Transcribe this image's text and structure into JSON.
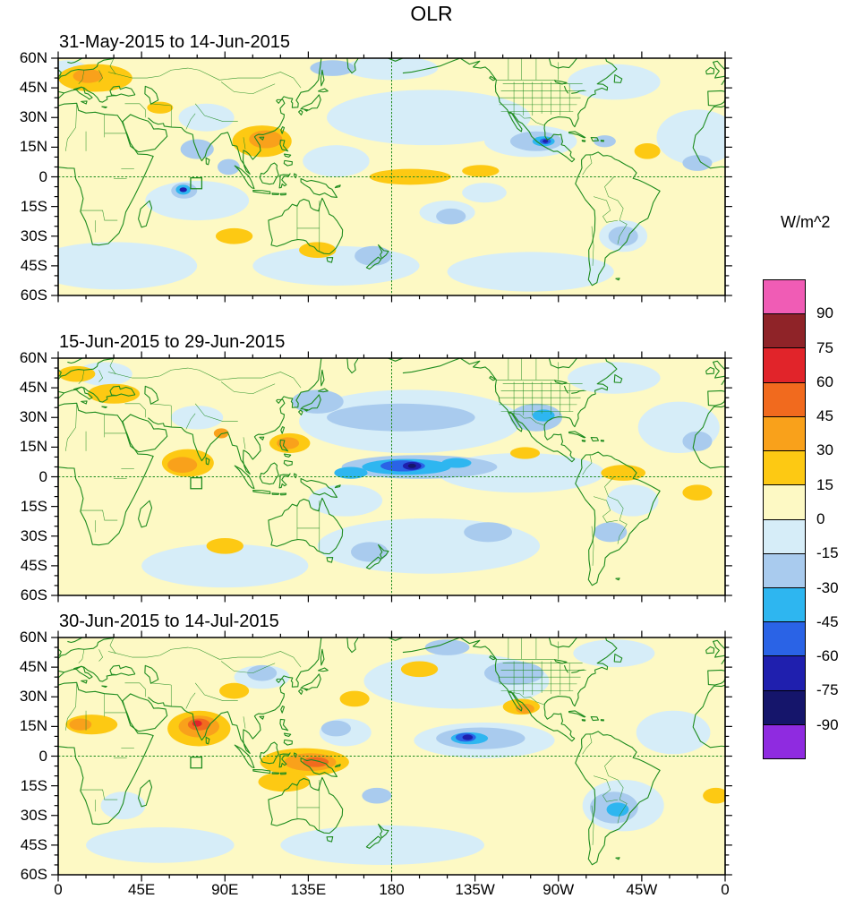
{
  "title": "OLR",
  "colorbar": {
    "label": "W/m^2",
    "tick_labels": [
      "90",
      "75",
      "60",
      "45",
      "30",
      "15",
      "0",
      "-15",
      "-30",
      "-45",
      "-60",
      "-75",
      "-90"
    ]
  },
  "axes": {
    "x_tick_labels": [
      "0",
      "45E",
      "90E",
      "135E",
      "180",
      "135W",
      "90W",
      "45W",
      "0"
    ],
    "x_tick_lons": [
      0,
      45,
      90,
      135,
      180,
      225,
      270,
      315,
      360
    ],
    "y_tick_labels": [
      "60N",
      "45N",
      "30N",
      "15N",
      "0",
      "15S",
      "30S",
      "45S",
      "60S"
    ],
    "y_tick_lats": [
      60,
      45,
      30,
      15,
      0,
      -15,
      -30,
      -45,
      -60
    ]
  },
  "chart_data": {
    "type": "heatmap",
    "variable": "OLR anomaly",
    "units": "W/m^2",
    "projection": "cylindrical, lon 0E eastward to 360, lat 60S to 60N",
    "contour_levels": [
      -90,
      -75,
      -60,
      -45,
      -30,
      -15,
      0,
      15,
      30,
      45,
      60,
      75,
      90
    ],
    "palette": [
      "#8f2be0",
      "#15156b",
      "#1f1fae",
      "#2a63e6",
      "#2eb6f0",
      "#a9cbee",
      "#d6edf8",
      "#fdf9c4",
      "#fdc913",
      "#f9a11b",
      "#f16a1e",
      "#e1242a",
      "#8f2328",
      "#f05cb5"
    ],
    "coast_color": "#1e8c1e",
    "equator_dashed": true,
    "dateline_dashed": true,
    "region_box": {
      "lon_min": 71.5,
      "lon_max": 77.5,
      "lat_min": -6,
      "lat_max": -0.5
    },
    "anomaly_format": "[lon_center, lat_center, lon_radius_deg, lat_radius_deg, palette_index] drawn in listed order",
    "panels": [
      {
        "title": "31-May-2015 to 14-Jun-2015",
        "anomalies": [
          [
            75,
            -12,
            28,
            10,
            6
          ],
          [
            30,
            -45,
            45,
            12,
            6
          ],
          [
            150,
            -45,
            45,
            10,
            6
          ],
          [
            255,
            -48,
            45,
            10,
            6
          ],
          [
            200,
            30,
            55,
            14,
            6
          ],
          [
            150,
            8,
            18,
            8,
            6
          ],
          [
            345,
            20,
            22,
            14,
            6
          ],
          [
            300,
            48,
            25,
            9,
            6
          ],
          [
            80,
            30,
            15,
            7,
            6
          ],
          [
            255,
            18,
            25,
            8,
            6
          ],
          [
            210,
            -18,
            15,
            6,
            6
          ],
          [
            230,
            -8,
            12,
            5,
            6
          ],
          [
            5,
            53,
            12,
            6,
            6
          ],
          [
            305,
            -30,
            13,
            8,
            6
          ],
          [
            180,
            55,
            25,
            6,
            6
          ],
          [
            75,
            14,
            9,
            5,
            5
          ],
          [
            92,
            5,
            6,
            4,
            5
          ],
          [
            258,
            18,
            14,
            5,
            5
          ],
          [
            170,
            -40,
            10,
            5,
            5
          ],
          [
            212,
            -20,
            8,
            4,
            5
          ],
          [
            68,
            -7,
            7,
            4,
            5
          ],
          [
            305,
            -30,
            8,
            5,
            5
          ],
          [
            148,
            55,
            12,
            4,
            5
          ],
          [
            345,
            7,
            8,
            4,
            5
          ],
          [
            295,
            18,
            6,
            3,
            5
          ],
          [
            67.5,
            -6.5,
            4,
            2.5,
            4
          ],
          [
            262,
            18,
            6,
            2.5,
            4
          ],
          [
            263,
            18,
            3,
            1.5,
            3
          ],
          [
            67.5,
            -6.5,
            2,
            1.2,
            2
          ],
          [
            263,
            18,
            1.5,
            0.9,
            2
          ],
          [
            20,
            50,
            20,
            7,
            8
          ],
          [
            110,
            18,
            16,
            8,
            8
          ],
          [
            190,
            0,
            22,
            4,
            8
          ],
          [
            228,
            3,
            10,
            3,
            8
          ],
          [
            95,
            -30,
            10,
            4,
            8
          ],
          [
            140,
            -37,
            10,
            4,
            8
          ],
          [
            318,
            13,
            7,
            4,
            8
          ],
          [
            55,
            35,
            7,
            3,
            8
          ],
          [
            112,
            19,
            9,
            4.5,
            9
          ],
          [
            16,
            51,
            8,
            3.5,
            9
          ]
        ]
      },
      {
        "title": "15-Jun-2015 to 29-Jun-2015",
        "anomalies": [
          [
            200,
            -35,
            60,
            14,
            6
          ],
          [
            90,
            -45,
            45,
            11,
            6
          ],
          [
            190,
            28,
            60,
            16,
            6
          ],
          [
            250,
            2,
            45,
            10,
            6
          ],
          [
            335,
            25,
            22,
            13,
            6
          ],
          [
            300,
            50,
            25,
            8,
            6
          ],
          [
            155,
            -12,
            20,
            8,
            6
          ],
          [
            75,
            30,
            14,
            6,
            6
          ],
          [
            310,
            -12,
            14,
            8,
            6
          ],
          [
            25,
            52,
            15,
            6,
            6
          ],
          [
            185,
            30,
            40,
            7,
            5
          ],
          [
            140,
            38,
            14,
            6,
            5
          ],
          [
            195,
            5,
            42,
            6,
            5
          ],
          [
            258,
            30,
            14,
            7,
            5
          ],
          [
            232,
            -28,
            13,
            5,
            5
          ],
          [
            168,
            -38,
            10,
            5,
            5
          ],
          [
            298,
            -28,
            9,
            5,
            5
          ],
          [
            345,
            18,
            8,
            5,
            5
          ],
          [
            188,
            5,
            24,
            4,
            4
          ],
          [
            158,
            2,
            9,
            3,
            4
          ],
          [
            215,
            7,
            8,
            2.5,
            4
          ],
          [
            262,
            31,
            6,
            3,
            4
          ],
          [
            186,
            5.5,
            12,
            2.8,
            3
          ],
          [
            191,
            5.5,
            5,
            2,
            2
          ],
          [
            191,
            5.5,
            2.2,
            1.1,
            1
          ],
          [
            70,
            7,
            14,
            7,
            8
          ],
          [
            125,
            17,
            11,
            5,
            8
          ],
          [
            30,
            42,
            14,
            5,
            8
          ],
          [
            90,
            -35,
            10,
            4,
            8
          ],
          [
            252,
            12,
            8,
            3,
            8
          ],
          [
            305,
            2,
            12,
            4,
            8
          ],
          [
            10,
            52,
            10,
            4,
            8
          ],
          [
            345,
            -8,
            8,
            4,
            8
          ],
          [
            67,
            6,
            8,
            4,
            9
          ],
          [
            124,
            17,
            6,
            3,
            9
          ],
          [
            88,
            22,
            4,
            2.5,
            9
          ]
        ]
      },
      {
        "title": "30-Jun-2015 to 14-Jul-2015",
        "anomalies": [
          [
            215,
            38,
            50,
            14,
            6
          ],
          [
            230,
            8,
            38,
            9,
            6
          ],
          [
            305,
            -25,
            22,
            13,
            6
          ],
          [
            175,
            -45,
            55,
            10,
            6
          ],
          [
            55,
            -45,
            40,
            9,
            6
          ],
          [
            332,
            12,
            20,
            11,
            6
          ],
          [
            155,
            12,
            14,
            7,
            6
          ],
          [
            300,
            52,
            22,
            7,
            6
          ],
          [
            35,
            -25,
            12,
            7,
            6
          ],
          [
            110,
            40,
            15,
            6,
            6
          ],
          [
            228,
            9,
            24,
            5.5,
            5
          ],
          [
            246,
            42,
            16,
            6,
            5
          ],
          [
            300,
            -26,
            13,
            8,
            5
          ],
          [
            150,
            14,
            8,
            4,
            5
          ],
          [
            172,
            -20,
            8,
            4,
            5
          ],
          [
            210,
            55,
            12,
            4,
            5
          ],
          [
            110,
            42,
            8,
            4,
            5
          ],
          [
            222,
            9,
            10,
            3,
            4
          ],
          [
            302,
            -27,
            6,
            3.5,
            4
          ],
          [
            220,
            9.5,
            5.5,
            2.2,
            3
          ],
          [
            221,
            9.5,
            2.8,
            1.4,
            2
          ],
          [
            76,
            14,
            17,
            9,
            8
          ],
          [
            133,
            -3,
            24,
            7,
            8
          ],
          [
            122,
            -13,
            14,
            5,
            8
          ],
          [
            18,
            16,
            14,
            5,
            8
          ],
          [
            250,
            25,
            10,
            4,
            8
          ],
          [
            195,
            44,
            10,
            4,
            8
          ],
          [
            95,
            33,
            8,
            4,
            8
          ],
          [
            160,
            29,
            8,
            4,
            8
          ],
          [
            355,
            -20,
            7,
            4,
            8
          ],
          [
            76,
            15,
            11,
            5.5,
            9
          ],
          [
            136,
            -3,
            14,
            4.5,
            9
          ],
          [
            12,
            16,
            6,
            3,
            9
          ],
          [
            252,
            24,
            5,
            2.5,
            9
          ],
          [
            76,
            16,
            6,
            3,
            10
          ],
          [
            139,
            -3,
            7,
            2.5,
            10
          ],
          [
            75,
            16.5,
            2.6,
            1.6,
            11
          ]
        ]
      }
    ]
  }
}
